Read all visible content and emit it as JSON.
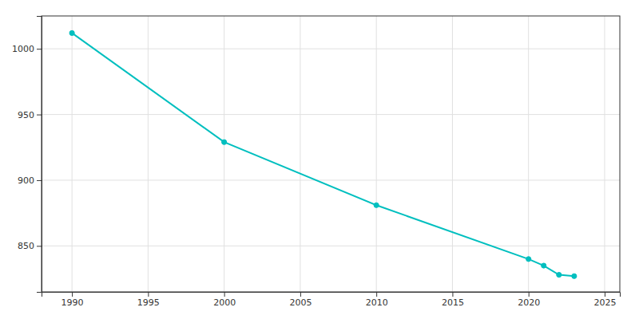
{
  "chart_data": {
    "type": "line",
    "x": [
      1990,
      2000,
      2010,
      2020,
      2021,
      2022,
      2023
    ],
    "values": [
      1012,
      929,
      881,
      840,
      835,
      828,
      827
    ],
    "color": "#00BFBF",
    "marker": "circle",
    "xlim": [
      1988,
      2026
    ],
    "ylim": [
      815,
      1025
    ],
    "xticks": [
      1990,
      1995,
      2000,
      2005,
      2010,
      2015,
      2020,
      2025
    ],
    "yticks": [
      850,
      900,
      950,
      1000
    ],
    "grid": true
  }
}
